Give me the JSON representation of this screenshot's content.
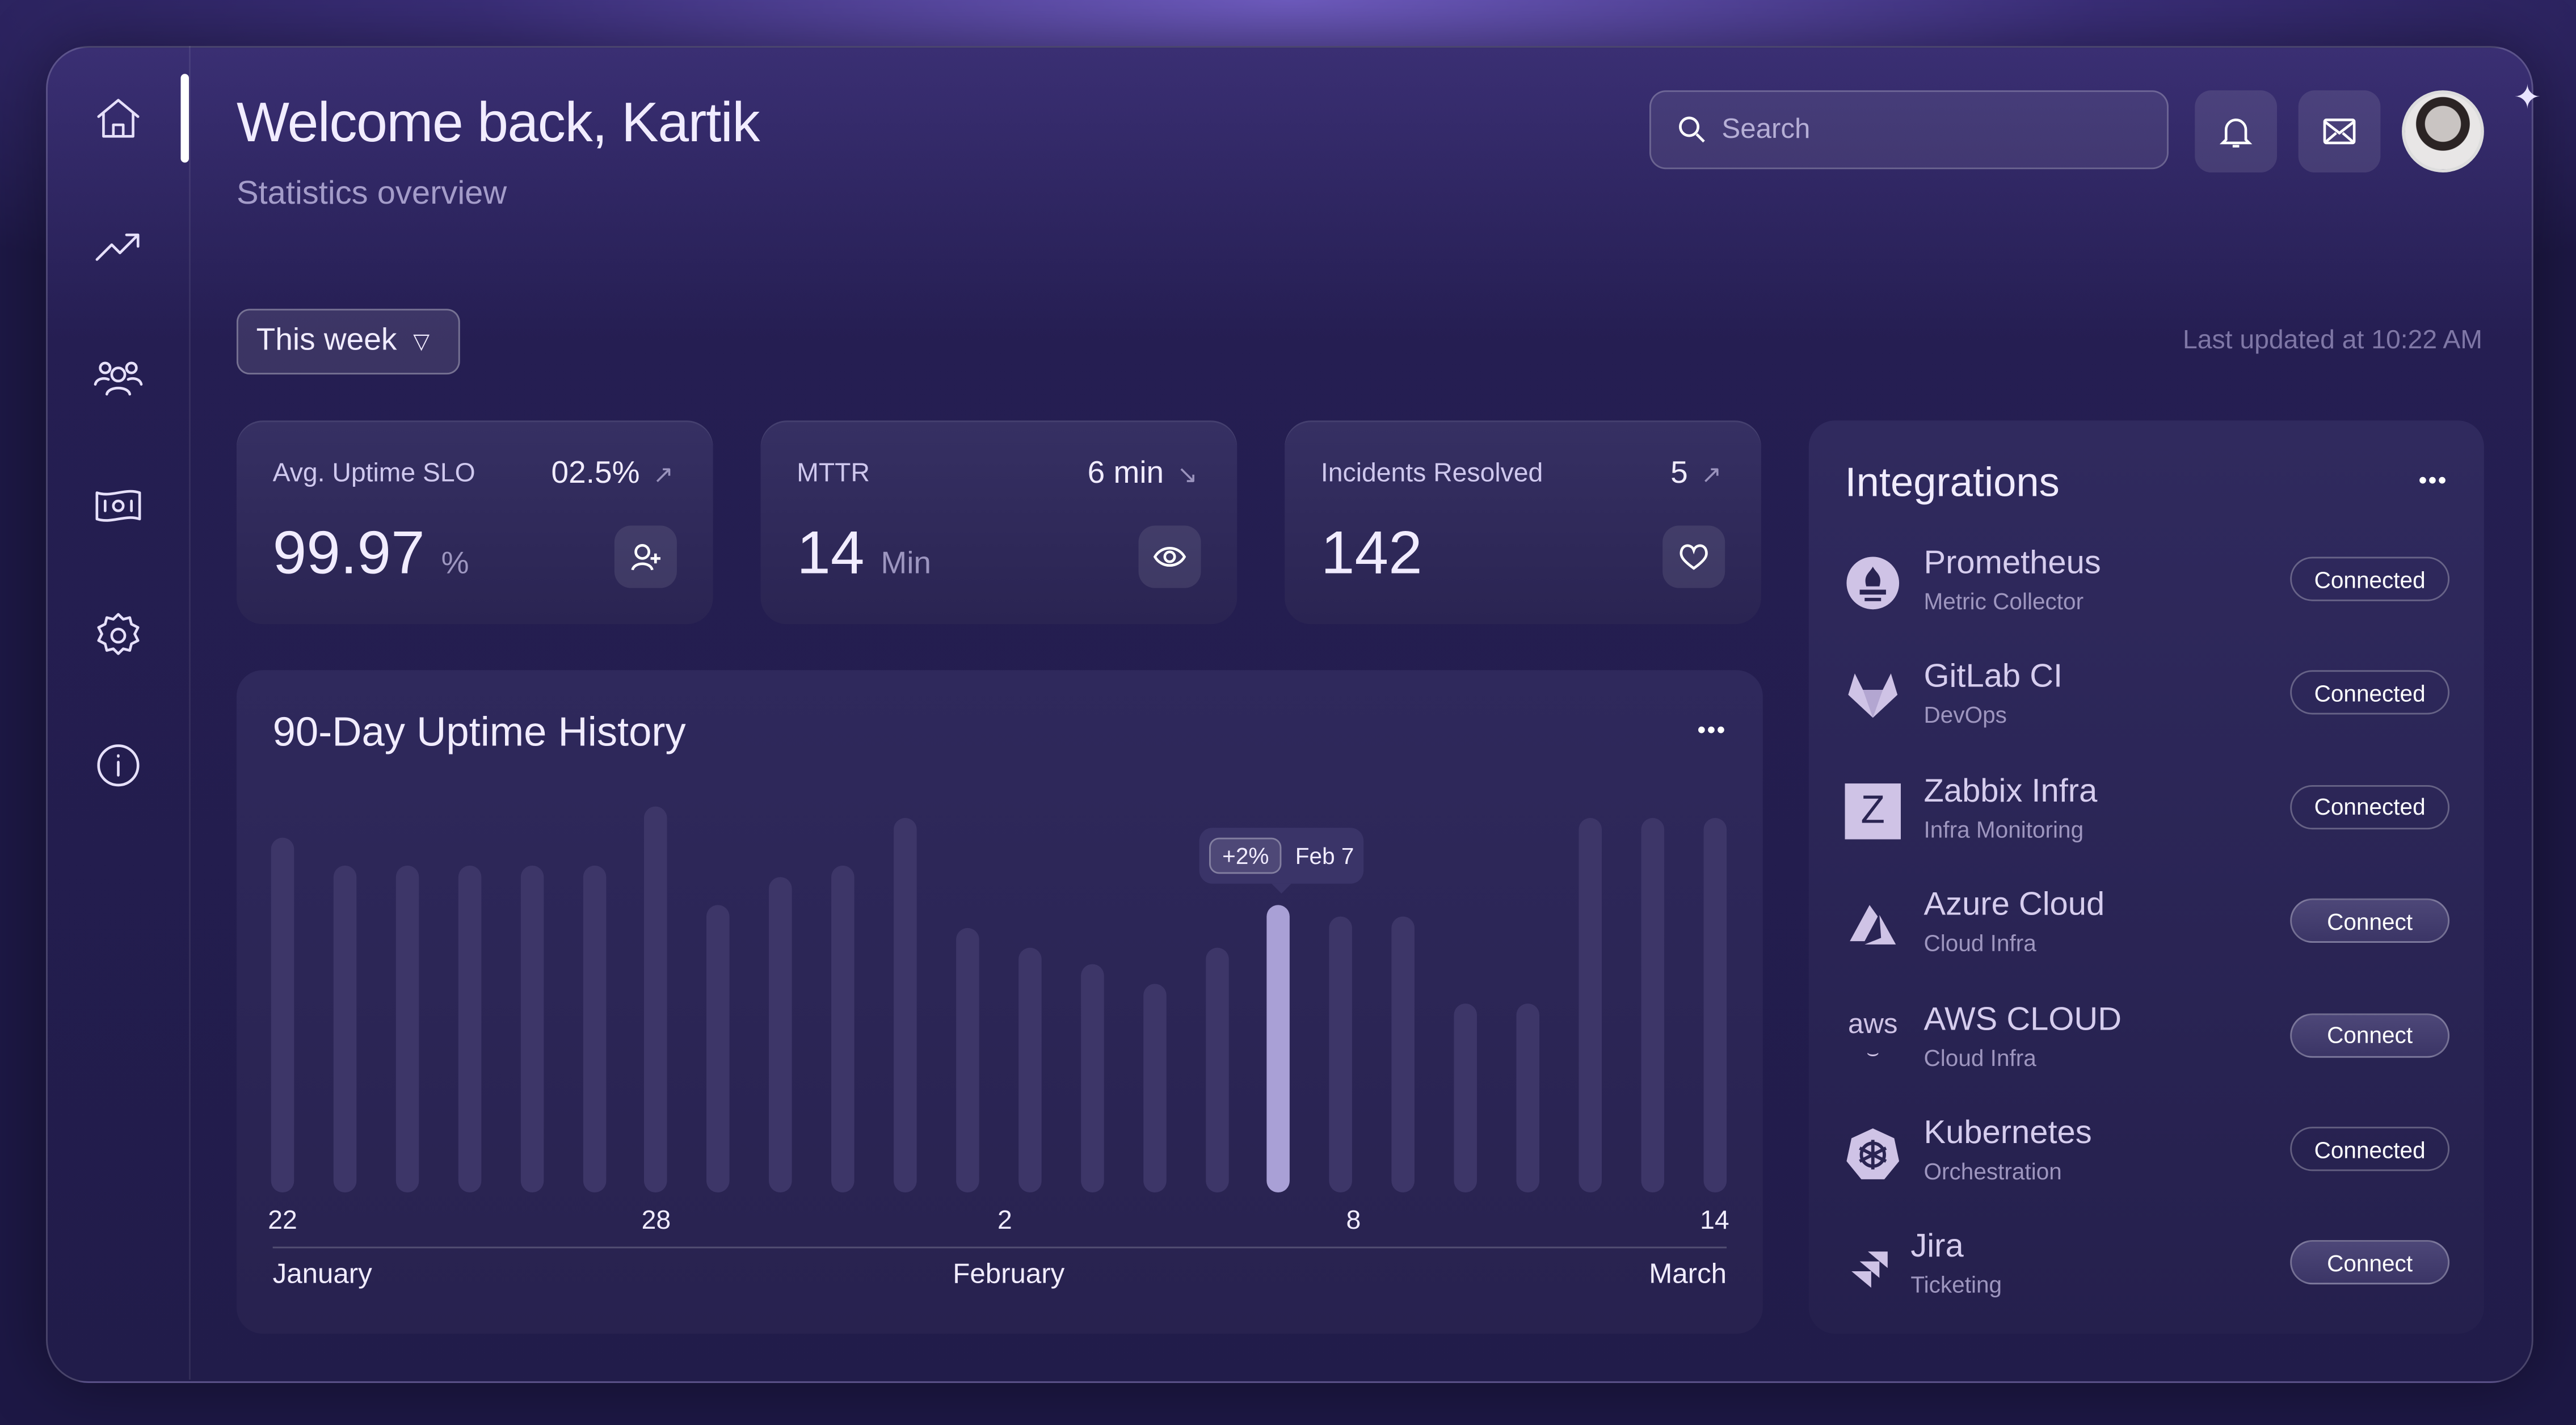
{
  "header": {
    "title": "Welcome back, Kartik",
    "subtitle": "Statistics overview",
    "search_placeholder": "Search"
  },
  "nav": [
    {
      "icon": "home-icon",
      "active": true
    },
    {
      "icon": "trending-up-icon"
    },
    {
      "icon": "users-icon"
    },
    {
      "icon": "money-icon"
    },
    {
      "icon": "settings-icon"
    },
    {
      "icon": "info-icon"
    }
  ],
  "filter": {
    "selected": "This week"
  },
  "last_updated": "Last updated at 10:22 AM",
  "stats": [
    {
      "label": "Avg. Uptime SLO",
      "delta": "02.5%",
      "trend": "up",
      "value": "99.97",
      "unit": "%",
      "icon": "user-plus-icon"
    },
    {
      "label": "MTTR",
      "delta": "6 min",
      "trend": "down",
      "value": "14",
      "unit": "Min",
      "icon": "eye-icon"
    },
    {
      "label": "Incidents Resolved",
      "delta": "5",
      "trend": "up",
      "value": "142",
      "unit": "",
      "icon": "heart-icon"
    }
  ],
  "chart_data": {
    "type": "bar",
    "title": "90-Day Uptime History",
    "ylim": [
      0,
      100
    ],
    "values": [
      90,
      83,
      83,
      83,
      83,
      83,
      98,
      73,
      80,
      83,
      95,
      67,
      62,
      58,
      53,
      62,
      73,
      70,
      70,
      48,
      48,
      95,
      95,
      95
    ],
    "highlight_index": 16,
    "tooltip": {
      "badge": "+2%",
      "label": "Feb 7"
    },
    "ticks": [
      {
        "label": "22",
        "index": 0
      },
      {
        "label": "28",
        "index": 6
      },
      {
        "label": "2",
        "index": 11.6
      },
      {
        "label": "8",
        "index": 17.2
      },
      {
        "label": "14",
        "index": 23
      }
    ],
    "months": [
      "January",
      "February",
      "March"
    ]
  },
  "integrations": {
    "title": "Integrations",
    "items": [
      {
        "name": "Prometheus",
        "sub": "Metric Collector",
        "status": "Connected"
      },
      {
        "name": "GitLab CI",
        "sub": "DevOps",
        "status": "Connected"
      },
      {
        "name": "Zabbix Infra",
        "sub": "Infra Monitoring",
        "status": "Connected",
        "logo": "Z"
      },
      {
        "name": "Azure Cloud",
        "sub": "Cloud Infra",
        "status": "Connect"
      },
      {
        "name": "AWS CLOUD",
        "sub": "Cloud Infra",
        "status": "Connect",
        "logo": "aws"
      },
      {
        "name": "Kubernetes",
        "sub": "Orchestration",
        "status": "Connected"
      },
      {
        "name": "Jira",
        "sub": "Ticketing",
        "status": "Connect"
      }
    ]
  }
}
